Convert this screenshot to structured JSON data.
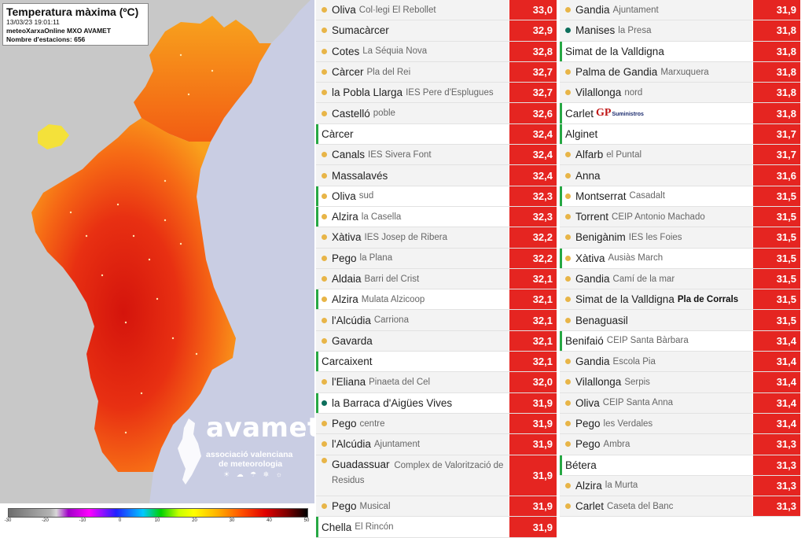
{
  "map": {
    "title": "Temperatura màxima (ºC)",
    "date": "13/03/23 19:01:11",
    "source": "meteoXarxaOnline MXO AVAMET",
    "stations_count": "Nombre d'estacions: 656",
    "logo": {
      "name": "avamet",
      "subtitle_line1": "associació valenciana",
      "subtitle_line2": "de meteorologia",
      "icons": "☀ ☁ ☂ ❄ ☼"
    },
    "colorbar_ticks": [
      "-30",
      "-20",
      "-10",
      "0",
      "10",
      "20",
      "30",
      "40",
      "50"
    ],
    "colors": {
      "sea": "#c9cde3",
      "land_outside": "#c8c8c8",
      "hot": "#e01f10",
      "warm": "#f45a12",
      "mild": "#f9a81c",
      "cool": "#f4e13a"
    }
  },
  "table": {
    "left": [
      {
        "station": "Oliva",
        "place": "Col·legi El Rebollet",
        "value": "33,0",
        "dot": "yellow"
      },
      {
        "station": "Sumacàrcer",
        "place": "",
        "value": "32,9",
        "dot": "yellow"
      },
      {
        "station": "Cotes",
        "place": "La Séquia Nova",
        "value": "32,8",
        "dot": "yellow"
      },
      {
        "station": "Càrcer",
        "place": "Pla del Rei",
        "value": "32,7",
        "dot": "yellow"
      },
      {
        "station": "la Pobla Llarga",
        "place": "IES Pere d'Esplugues",
        "value": "32,7",
        "dot": "yellow"
      },
      {
        "station": "Castelló",
        "place": "poble",
        "value": "32,6",
        "dot": "yellow"
      },
      {
        "station": "Càrcer",
        "place": "",
        "value": "32,4",
        "dot": "none",
        "lead": true
      },
      {
        "station": "Canals",
        "place": "IES Sivera Font",
        "value": "32,4",
        "dot": "yellow"
      },
      {
        "station": "Massalavés",
        "place": "",
        "value": "32,4",
        "dot": "yellow"
      },
      {
        "station": "Oliva",
        "place": "sud",
        "value": "32,3",
        "dot": "yellow",
        "lead": true
      },
      {
        "station": "Alzira",
        "place": "la Casella",
        "value": "32,3",
        "dot": "yellow",
        "lead": true
      },
      {
        "station": "Xàtiva",
        "place": "IES Josep de Ribera",
        "value": "32,2",
        "dot": "yellow"
      },
      {
        "station": "Pego",
        "place": "la Plana",
        "value": "32,2",
        "dot": "yellow"
      },
      {
        "station": "Aldaia",
        "place": "Barri del Crist",
        "value": "32,1",
        "dot": "yellow"
      },
      {
        "station": "Alzira",
        "place": "Mulata Alzicoop",
        "value": "32,1",
        "dot": "yellow",
        "lead": true
      },
      {
        "station": "l'Alcúdia",
        "place": "Carriona",
        "value": "32,1",
        "dot": "yellow"
      },
      {
        "station": "Gavarda",
        "place": "",
        "value": "32,1",
        "dot": "yellow"
      },
      {
        "station": "Carcaixent",
        "place": "",
        "value": "32,1",
        "dot": "none",
        "lead": true
      },
      {
        "station": "l'Eliana",
        "place": "Pinaeta del Cel",
        "value": "32,0",
        "dot": "yellow"
      },
      {
        "station": "la Barraca d'Aigües Vives",
        "place": "",
        "value": "31,9",
        "dot": "green",
        "lead": true
      },
      {
        "station": "Pego",
        "place": "centre",
        "value": "31,9",
        "dot": "yellow"
      },
      {
        "station": "l'Alcúdia",
        "place": "Ajuntament",
        "value": "31,9",
        "dot": "yellow"
      },
      {
        "station": "Guadassuar",
        "place": "Complex de Valorització de Residus",
        "value": "31,9",
        "dot": "yellow",
        "wrap": true
      },
      {
        "station": "Pego",
        "place": "Musical",
        "value": "31,9",
        "dot": "yellow"
      },
      {
        "station": "Chella",
        "place": "El Rincón",
        "value": "31,9",
        "dot": "none",
        "lead": true
      }
    ],
    "right": [
      {
        "station": "Gandia",
        "place": "Ajuntament",
        "value": "31,9",
        "dot": "yellow"
      },
      {
        "station": "Manises",
        "place": "la Presa",
        "value": "31,8",
        "dot": "green"
      },
      {
        "station": "Simat de la Valldigna",
        "place": "",
        "value": "31,8",
        "dot": "none",
        "lead": true
      },
      {
        "station": "Palma de Gandia",
        "place": "Marxuquera",
        "value": "31,8",
        "dot": "yellow"
      },
      {
        "station": "Vilallonga",
        "place": "nord",
        "value": "31,8",
        "dot": "yellow"
      },
      {
        "station": "Carlet",
        "place": "",
        "value": "31,8",
        "dot": "none",
        "lead": true,
        "sponsor": {
          "mark": "GP",
          "text": "Suministros"
        }
      },
      {
        "station": "Alginet",
        "place": "",
        "value": "31,7",
        "dot": "none",
        "lead": true
      },
      {
        "station": "Alfarb",
        "place": "el Puntal",
        "value": "31,7",
        "dot": "yellow"
      },
      {
        "station": "Anna",
        "place": "",
        "value": "31,6",
        "dot": "yellow"
      },
      {
        "station": "Montserrat",
        "place": "Casadalt",
        "value": "31,5",
        "dot": "yellow",
        "lead": true
      },
      {
        "station": "Torrent",
        "place": "CEIP Antonio Machado",
        "value": "31,5",
        "dot": "yellow"
      },
      {
        "station": "Benigànim",
        "place": "IES les Foies",
        "value": "31,5",
        "dot": "yellow"
      },
      {
        "station": "Xàtiva",
        "place": "Ausiàs March",
        "value": "31,5",
        "dot": "yellow",
        "lead": true
      },
      {
        "station": "Gandia",
        "place": "Camí de la mar",
        "value": "31,5",
        "dot": "yellow"
      },
      {
        "station": "Simat de la Valldigna",
        "place": "Pla de Corrals",
        "value": "31,5",
        "dot": "yellow",
        "bold_place": true
      },
      {
        "station": "Benaguasil",
        "place": "",
        "value": "31,5",
        "dot": "yellow"
      },
      {
        "station": "Benifaió",
        "place": "CEIP Santa Bàrbara",
        "value": "31,4",
        "dot": "none",
        "lead": true
      },
      {
        "station": "Gandia",
        "place": "Escola Pia",
        "value": "31,4",
        "dot": "yellow"
      },
      {
        "station": "Vilallonga",
        "place": "Serpis",
        "value": "31,4",
        "dot": "yellow"
      },
      {
        "station": "Oliva",
        "place": "CEIP Santa Anna",
        "value": "31,4",
        "dot": "yellow"
      },
      {
        "station": "Pego",
        "place": "les Verdales",
        "value": "31,4",
        "dot": "yellow"
      },
      {
        "station": "Pego",
        "place": "Ambra",
        "value": "31,3",
        "dot": "yellow"
      },
      {
        "station": "Bétera",
        "place": "",
        "value": "31,3",
        "dot": "none",
        "lead": true
      },
      {
        "station": "Alzira",
        "place": "la Murta",
        "value": "31,3",
        "dot": "yellow"
      },
      {
        "station": "Carlet",
        "place": "Caseta del Banc",
        "value": "31,3",
        "dot": "yellow"
      }
    ]
  }
}
